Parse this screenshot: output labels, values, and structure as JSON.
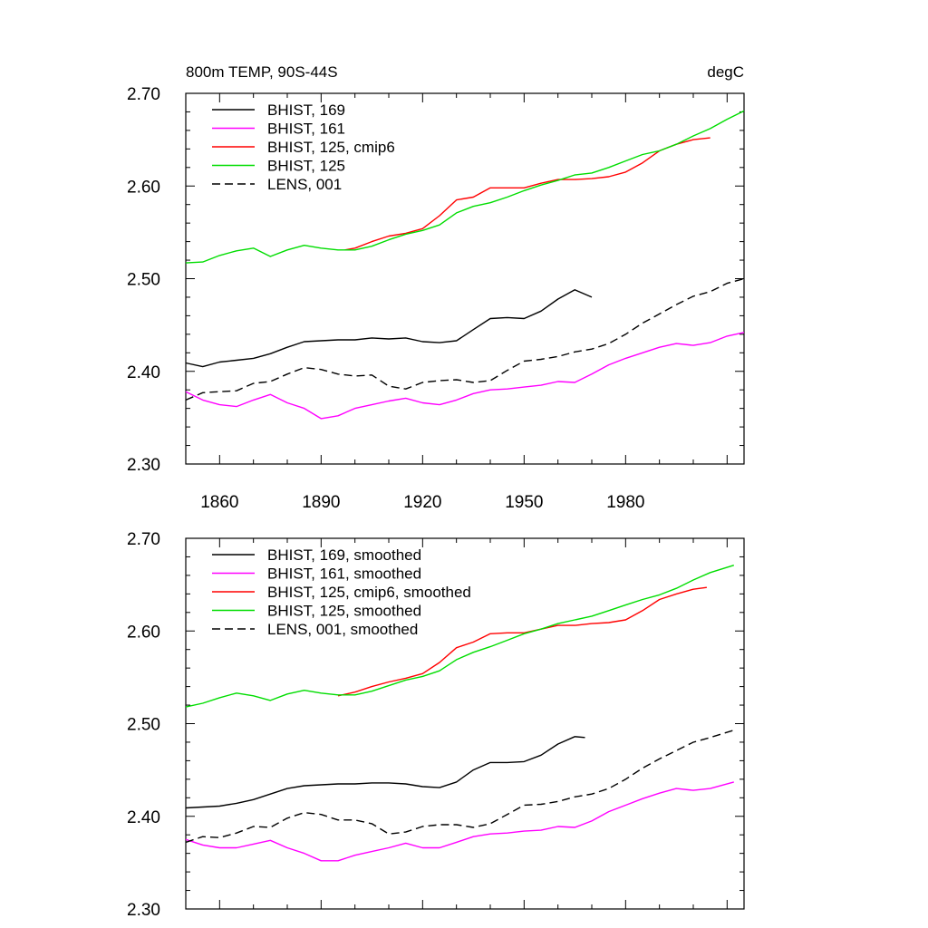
{
  "chart_data": [
    {
      "type": "line",
      "title": "800m TEMP, 90S-44S",
      "units": "degC",
      "xlim": [
        1850,
        2015
      ],
      "ylim": [
        2.3,
        2.7
      ],
      "yticks": [
        "2.30",
        "2.40",
        "2.50",
        "2.60",
        "2.70"
      ],
      "xticks": [
        "1860",
        "1890",
        "1920",
        "1950",
        "1980"
      ],
      "legend_position": "top-left",
      "series": [
        {
          "name": "BHIST, 169",
          "color": "#000000",
          "dash": "solid",
          "x": [
            1850,
            1855,
            1860,
            1865,
            1870,
            1875,
            1880,
            1885,
            1890,
            1895,
            1900,
            1905,
            1910,
            1915,
            1920,
            1925,
            1930,
            1935,
            1940,
            1945,
            1950,
            1955,
            1960,
            1965,
            1970
          ],
          "y": [
            2.409,
            2.405,
            2.41,
            2.412,
            2.414,
            2.419,
            2.426,
            2.432,
            2.433,
            2.434,
            2.434,
            2.436,
            2.435,
            2.436,
            2.432,
            2.431,
            2.433,
            2.445,
            2.457,
            2.458,
            2.457,
            2.465,
            2.478,
            2.488,
            2.48
          ]
        },
        {
          "name": "BHIST, 161",
          "color": "#ff00ff",
          "dash": "solid",
          "x": [
            1850,
            1855,
            1860,
            1865,
            1870,
            1875,
            1880,
            1885,
            1890,
            1895,
            1900,
            1905,
            1910,
            1915,
            1920,
            1925,
            1930,
            1935,
            1940,
            1945,
            1950,
            1955,
            1960,
            1965,
            1970,
            1975,
            1980,
            1985,
            1990,
            1995,
            2000,
            2005,
            2010,
            2015
          ],
          "y": [
            2.378,
            2.369,
            2.364,
            2.362,
            2.369,
            2.375,
            2.366,
            2.36,
            2.349,
            2.352,
            2.36,
            2.364,
            2.368,
            2.371,
            2.366,
            2.364,
            2.369,
            2.376,
            2.38,
            2.381,
            2.383,
            2.385,
            2.389,
            2.388,
            2.397,
            2.407,
            2.414,
            2.42,
            2.426,
            2.43,
            2.428,
            2.431,
            2.438,
            2.442
          ]
        },
        {
          "name": "BHIST, 125, cmip6",
          "color": "#ff0000",
          "dash": "solid",
          "x": [
            1897,
            1900,
            1905,
            1910,
            1915,
            1920,
            1925,
            1930,
            1935,
            1940,
            1945,
            1950,
            1955,
            1960,
            1965,
            1970,
            1975,
            1980,
            1985,
            1990,
            1995,
            2000,
            2005
          ],
          "y": [
            2.531,
            2.533,
            2.54,
            2.546,
            2.549,
            2.554,
            2.568,
            2.585,
            2.588,
            2.598,
            2.598,
            2.598,
            2.603,
            2.607,
            2.607,
            2.608,
            2.61,
            2.615,
            2.625,
            2.638,
            2.645,
            2.65,
            2.652
          ]
        },
        {
          "name": "BHIST, 125",
          "color": "#00dd00",
          "dash": "solid",
          "x": [
            1850,
            1855,
            1860,
            1865,
            1870,
            1875,
            1880,
            1885,
            1890,
            1895,
            1900,
            1905,
            1910,
            1915,
            1920,
            1925,
            1930,
            1935,
            1940,
            1945,
            1950,
            1955,
            1960,
            1965,
            1970,
            1975,
            1980,
            1985,
            1990,
            1995,
            2000,
            2005,
            2010,
            2015
          ],
          "y": [
            2.517,
            2.518,
            2.525,
            2.53,
            2.533,
            2.524,
            2.531,
            2.536,
            2.533,
            2.531,
            2.531,
            2.535,
            2.542,
            2.548,
            2.552,
            2.558,
            2.571,
            2.578,
            2.582,
            2.588,
            2.595,
            2.601,
            2.606,
            2.612,
            2.614,
            2.62,
            2.627,
            2.634,
            2.638,
            2.645,
            2.654,
            2.662,
            2.672,
            2.681
          ]
        },
        {
          "name": "LENS, 001",
          "color": "#000000",
          "dash": "dashed",
          "x": [
            1850,
            1855,
            1860,
            1865,
            1870,
            1875,
            1880,
            1885,
            1890,
            1895,
            1900,
            1905,
            1910,
            1915,
            1920,
            1925,
            1930,
            1935,
            1940,
            1945,
            1950,
            1955,
            1960,
            1965,
            1970,
            1975,
            1980,
            1985,
            1990,
            1995,
            2000,
            2005,
            2010,
            2015
          ],
          "y": [
            2.369,
            2.377,
            2.378,
            2.379,
            2.387,
            2.389,
            2.397,
            2.404,
            2.402,
            2.397,
            2.395,
            2.396,
            2.384,
            2.381,
            2.388,
            2.39,
            2.391,
            2.388,
            2.39,
            2.401,
            2.411,
            2.413,
            2.416,
            2.421,
            2.424,
            2.43,
            2.44,
            2.452,
            2.462,
            2.472,
            2.481,
            2.486,
            2.495,
            2.5
          ]
        }
      ]
    },
    {
      "type": "line",
      "xlim": [
        1850,
        2015
      ],
      "ylim": [
        2.3,
        2.7
      ],
      "yticks": [
        "2.30",
        "2.40",
        "2.50",
        "2.60",
        "2.70"
      ],
      "legend_position": "top-left",
      "series": [
        {
          "name": "BHIST, 169, smoothed",
          "color": "#000000",
          "dash": "solid",
          "x": [
            1850,
            1855,
            1860,
            1865,
            1870,
            1875,
            1880,
            1885,
            1890,
            1895,
            1900,
            1905,
            1910,
            1915,
            1920,
            1925,
            1930,
            1935,
            1940,
            1945,
            1950,
            1955,
            1960,
            1965,
            1968
          ],
          "y": [
            2.409,
            2.41,
            2.411,
            2.414,
            2.418,
            2.424,
            2.43,
            2.433,
            2.434,
            2.435,
            2.435,
            2.436,
            2.436,
            2.435,
            2.432,
            2.431,
            2.437,
            2.45,
            2.458,
            2.458,
            2.459,
            2.466,
            2.478,
            2.486,
            2.485
          ]
        },
        {
          "name": "BHIST, 161, smoothed",
          "color": "#ff00ff",
          "dash": "solid",
          "x": [
            1850,
            1855,
            1860,
            1865,
            1870,
            1875,
            1880,
            1885,
            1890,
            1895,
            1900,
            1905,
            1910,
            1915,
            1920,
            1925,
            1930,
            1935,
            1940,
            1945,
            1950,
            1955,
            1960,
            1965,
            1970,
            1975,
            1980,
            1985,
            1990,
            1995,
            2000,
            2005,
            2012
          ],
          "y": [
            2.375,
            2.369,
            2.366,
            2.366,
            2.37,
            2.374,
            2.366,
            2.36,
            2.352,
            2.352,
            2.358,
            2.362,
            2.366,
            2.371,
            2.366,
            2.366,
            2.372,
            2.378,
            2.381,
            2.382,
            2.384,
            2.385,
            2.389,
            2.388,
            2.395,
            2.405,
            2.412,
            2.419,
            2.425,
            2.43,
            2.428,
            2.43,
            2.437
          ]
        },
        {
          "name": "BHIST, 125, cmip6, smoothed",
          "color": "#ff0000",
          "dash": "solid",
          "x": [
            1895,
            1900,
            1905,
            1910,
            1915,
            1920,
            1925,
            1930,
            1935,
            1940,
            1945,
            1950,
            1955,
            1960,
            1965,
            1970,
            1975,
            1980,
            1985,
            1990,
            1995,
            2000,
            2004
          ],
          "y": [
            2.53,
            2.534,
            2.54,
            2.545,
            2.549,
            2.554,
            2.566,
            2.582,
            2.588,
            2.597,
            2.598,
            2.598,
            2.602,
            2.606,
            2.606,
            2.608,
            2.609,
            2.612,
            2.622,
            2.634,
            2.64,
            2.645,
            2.647
          ]
        },
        {
          "name": "BHIST, 125, smoothed",
          "color": "#00dd00",
          "dash": "solid",
          "x": [
            1850,
            1855,
            1860,
            1865,
            1870,
            1875,
            1880,
            1885,
            1890,
            1895,
            1900,
            1905,
            1910,
            1915,
            1920,
            1925,
            1930,
            1935,
            1940,
            1945,
            1950,
            1955,
            1960,
            1965,
            1970,
            1975,
            1980,
            1985,
            1990,
            1995,
            2000,
            2005,
            2012
          ],
          "y": [
            2.518,
            2.522,
            2.528,
            2.533,
            2.53,
            2.525,
            2.532,
            2.536,
            2.533,
            2.531,
            2.531,
            2.535,
            2.541,
            2.547,
            2.551,
            2.557,
            2.569,
            2.577,
            2.583,
            2.59,
            2.597,
            2.602,
            2.608,
            2.612,
            2.616,
            2.622,
            2.628,
            2.634,
            2.639,
            2.646,
            2.655,
            2.663,
            2.671
          ]
        },
        {
          "name": "LENS, 001, smoothed",
          "color": "#000000",
          "dash": "dashed",
          "x": [
            1850,
            1855,
            1860,
            1865,
            1870,
            1875,
            1880,
            1885,
            1890,
            1895,
            1900,
            1905,
            1910,
            1915,
            1920,
            1925,
            1930,
            1935,
            1940,
            1945,
            1950,
            1955,
            1960,
            1965,
            1970,
            1975,
            1980,
            1985,
            1990,
            1995,
            2000,
            2005,
            2012
          ],
          "y": [
            2.372,
            2.378,
            2.377,
            2.382,
            2.389,
            2.388,
            2.398,
            2.404,
            2.402,
            2.396,
            2.396,
            2.392,
            2.381,
            2.383,
            2.389,
            2.391,
            2.391,
            2.388,
            2.392,
            2.402,
            2.412,
            2.413,
            2.416,
            2.421,
            2.424,
            2.43,
            2.44,
            2.452,
            2.462,
            2.471,
            2.48,
            2.485,
            2.493
          ]
        }
      ]
    }
  ]
}
